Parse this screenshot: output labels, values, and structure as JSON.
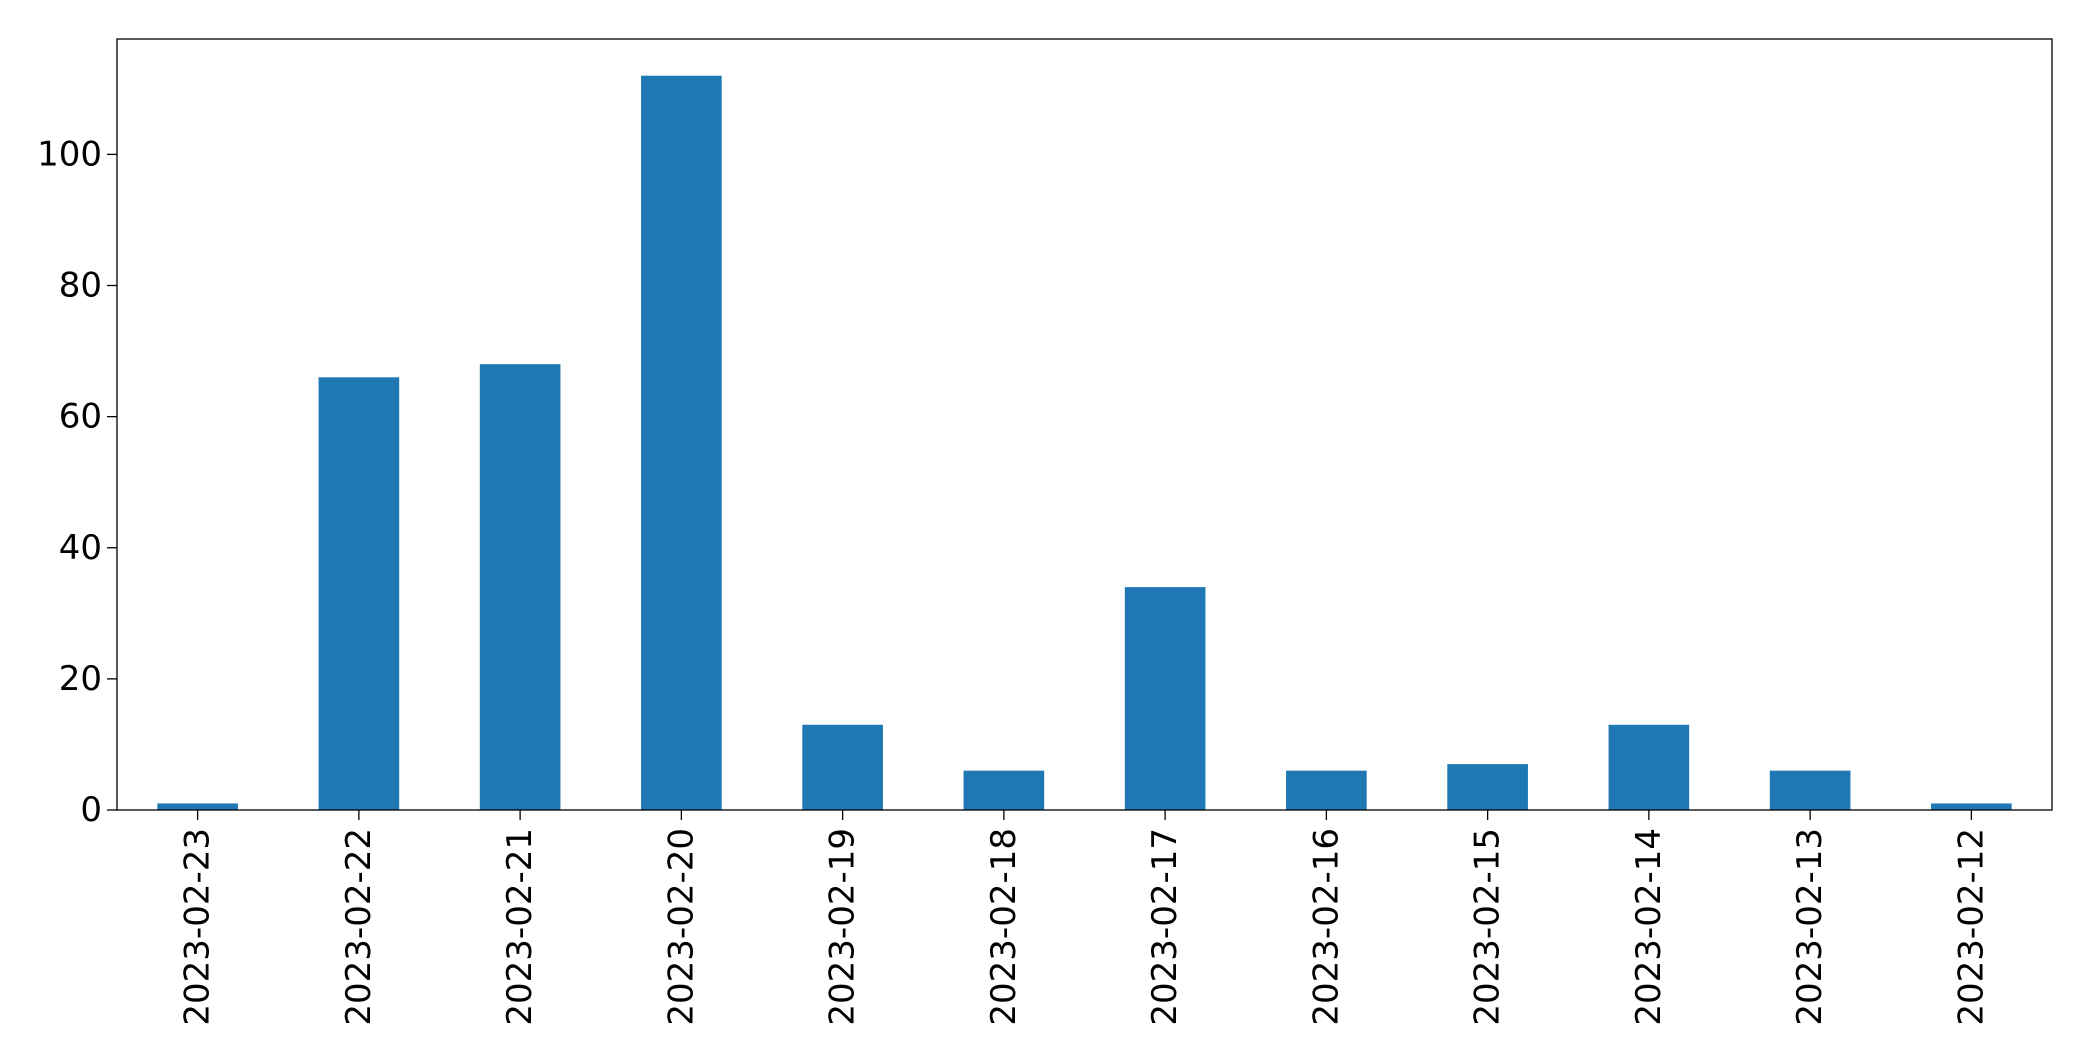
{
  "chart_data": {
    "type": "bar",
    "title": "",
    "xlabel": "",
    "ylabel": "",
    "categories": [
      "2023-02-23",
      "2023-02-22",
      "2023-02-21",
      "2023-02-20",
      "2023-02-19",
      "2023-02-18",
      "2023-02-17",
      "2023-02-16",
      "2023-02-15",
      "2023-02-14",
      "2023-02-13",
      "2023-02-12"
    ],
    "values": [
      1,
      66,
      68,
      112,
      13,
      6,
      34,
      6,
      7,
      13,
      6,
      1
    ],
    "ylim": [
      0,
      117.6
    ],
    "yticks": [
      0,
      20,
      40,
      60,
      80,
      100
    ],
    "grid": false,
    "legend": "none",
    "colors": {
      "bar": "#1f77b4",
      "axes": "#000000",
      "background": "#ffffff"
    }
  }
}
